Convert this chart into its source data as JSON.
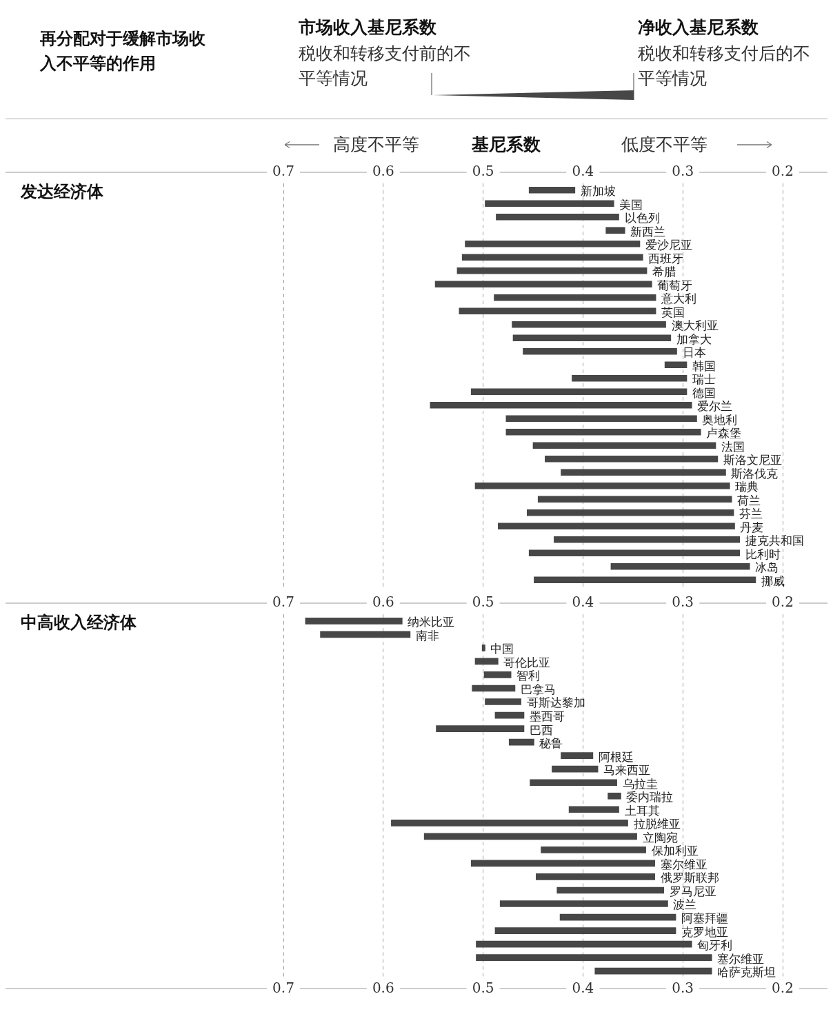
{
  "chart_data": [
    {
      "type": "bar",
      "orientation": "horizontal",
      "title": "再分配对于缓解市场收入不平等的作用",
      "ylabel": "发达经济体",
      "xlabel": "基尼系数",
      "annotations": [
        "市场收入基尼系数",
        "税收和转移支付前的不平等情况",
        "净收入基尼系数",
        "税收和转移支付后的不平等情况",
        "高度不平等",
        "低度不平等"
      ],
      "categories": [
        "新加坡",
        "美国",
        "以色列",
        "新西兰",
        "爱沙尼亚",
        "西班牙",
        "希腊",
        "葡萄牙",
        "意大利",
        "英国",
        "澳大利亚",
        "加拿大",
        "日本",
        "韩国",
        "瑞士",
        "德国",
        "爱尔兰",
        "奥地利",
        "卢森堡",
        "法国",
        "斯洛文尼亚",
        "斯洛伐克",
        "瑞典",
        "荷兰",
        "芬兰",
        "丹麦",
        "捷克共和国",
        "比利时",
        "冰岛",
        "挪威"
      ],
      "base": [
        0.454,
        0.498,
        0.487,
        0.377,
        0.518,
        0.521,
        0.526,
        0.548,
        0.489,
        0.524,
        0.471,
        0.47,
        0.46,
        0.318,
        0.411,
        0.512,
        0.553,
        0.477,
        0.477,
        0.45,
        0.438,
        0.422,
        0.508,
        0.445,
        0.456,
        0.485,
        0.429,
        0.454,
        0.372,
        0.449
      ],
      "values": [
        -0.046,
        -0.129,
        -0.123,
        -0.019,
        -0.175,
        -0.181,
        -0.19,
        -0.217,
        -0.162,
        -0.197,
        -0.154,
        -0.158,
        -0.154,
        -0.022,
        -0.115,
        -0.216,
        -0.262,
        -0.191,
        -0.195,
        -0.183,
        -0.173,
        -0.165,
        -0.255,
        -0.194,
        -0.207,
        -0.237,
        -0.186,
        -0.211,
        -0.139,
        -0.222
      ],
      "color": "#474747",
      "xlim": [
        0.7,
        0.2
      ],
      "xticks": [
        0.7,
        0.6,
        0.5,
        0.4,
        0.3,
        0.2
      ],
      "grid": "x"
    },
    {
      "type": "bar",
      "orientation": "horizontal",
      "ylabel": "中高收入经济体",
      "categories": [
        "纳米比亚",
        "南非",
        "中国",
        "哥伦比亚",
        "智利",
        "巴拿马",
        "哥斯达黎加",
        "墨西哥",
        "巴西",
        "秘鲁",
        "阿根廷",
        "马来西亚",
        "乌拉圭",
        "委内瑞拉",
        "土耳其",
        "拉脱维亚",
        "立陶宛",
        "保加利亚",
        "塞尔维亚",
        "俄罗斯联邦",
        "罗马尼亚",
        "波兰",
        "阿塞拜疆",
        "克罗地亚",
        "匈牙利",
        "塞尔维亚",
        "哈萨克斯坦"
      ],
      "base": [
        0.678,
        0.663,
        0.501,
        0.508,
        0.499,
        0.511,
        0.498,
        0.488,
        0.547,
        0.474,
        0.422,
        0.431,
        0.453,
        0.375,
        0.414,
        0.592,
        0.559,
        0.442,
        0.512,
        0.447,
        0.426,
        0.483,
        0.423,
        0.488,
        0.507,
        0.507,
        0.388
      ],
      "values": [
        -0.097,
        -0.09,
        -0.003,
        -0.023,
        -0.027,
        -0.043,
        -0.036,
        -0.029,
        -0.088,
        -0.025,
        -0.032,
        -0.046,
        -0.087,
        -0.013,
        -0.05,
        -0.237,
        -0.213,
        -0.105,
        -0.184,
        -0.119,
        -0.107,
        -0.168,
        -0.116,
        -0.181,
        -0.216,
        -0.236,
        -0.117
      ],
      "color": "#474747",
      "xlim": [
        0.7,
        0.2
      ],
      "xticks": [
        0.7,
        0.6,
        0.5,
        0.4,
        0.3,
        0.2
      ],
      "x2lim": [
        0.7,
        0.2
      ],
      "x2ticks": [
        0.7,
        0.6,
        0.5,
        0.4,
        0.3,
        0.2
      ],
      "grid": "x"
    }
  ]
}
